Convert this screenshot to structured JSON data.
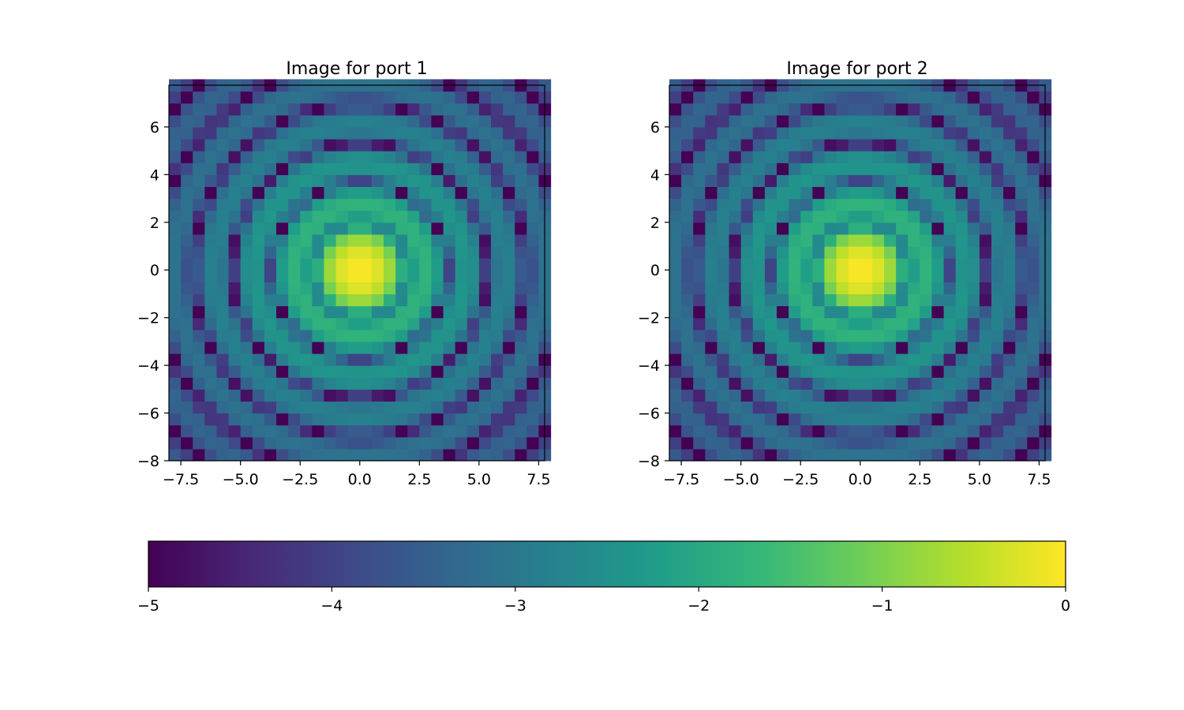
{
  "chart_data": [
    {
      "type": "heatmap",
      "title": "Image for port 1",
      "xlabel": "",
      "ylabel": "",
      "xlim": [
        -8,
        7.75
      ],
      "ylim": [
        -8,
        7.75
      ],
      "xticks": [
        -7.5,
        -5.0,
        -2.5,
        0.0,
        2.5,
        5.0,
        7.5
      ],
      "xtick_labels": [
        "−7.5",
        "−5.0",
        "−2.5",
        "0.0",
        "2.5",
        "5.0",
        "7.5"
      ],
      "yticks": [
        -8,
        -6,
        -4,
        -2,
        0,
        2,
        4,
        6
      ],
      "ytick_labels": [
        "−8",
        "−6",
        "−4",
        "−2",
        "0",
        "2",
        "4",
        "6"
      ],
      "grid": {
        "nx": 32,
        "ny": 32,
        "x0": -8,
        "dx": 0.5
      },
      "value_model": "log10 of a radially oscillating Airy-like intensity pattern centered at (0,0), peak 0 at center, minimum about -5",
      "value_range": [
        -5,
        0
      ],
      "colormap": "viridis"
    },
    {
      "type": "heatmap",
      "title": "Image for port 2",
      "xlabel": "",
      "ylabel": "",
      "xlim": [
        -8,
        7.75
      ],
      "ylim": [
        -8,
        7.75
      ],
      "xticks": [
        -7.5,
        -5.0,
        -2.5,
        0.0,
        2.5,
        5.0,
        7.5
      ],
      "xtick_labels": [
        "−7.5",
        "−5.0",
        "−2.5",
        "0.0",
        "2.5",
        "5.0",
        "7.5"
      ],
      "yticks": [
        -8,
        -6,
        -4,
        -2,
        0,
        2,
        4,
        6
      ],
      "ytick_labels": [
        "−8",
        "−6",
        "−4",
        "−2",
        "0",
        "2",
        "4",
        "6"
      ],
      "grid": {
        "nx": 32,
        "ny": 32,
        "x0": -8,
        "dx": 0.5
      },
      "value_model": "log10 of a radially oscillating Airy-like intensity pattern centered at (0,0), peak 0 at center, minimum about -5",
      "value_range": [
        -5,
        0
      ],
      "colormap": "viridis"
    }
  ],
  "colorbar": {
    "orientation": "horizontal",
    "range": [
      -5,
      0
    ],
    "ticks": [
      -5,
      -4,
      -3,
      -2,
      -1,
      0
    ],
    "tick_labels": [
      "−5",
      "−4",
      "−3",
      "−2",
      "−1",
      "0"
    ],
    "colormap": "viridis"
  },
  "colors": {
    "viridis": [
      "#440154",
      "#482878",
      "#3e4989",
      "#31688e",
      "#26828e",
      "#1f9e89",
      "#35b779",
      "#6ece58",
      "#b5de2b",
      "#fde725"
    ],
    "axis": "#000000",
    "background": "#ffffff"
  }
}
